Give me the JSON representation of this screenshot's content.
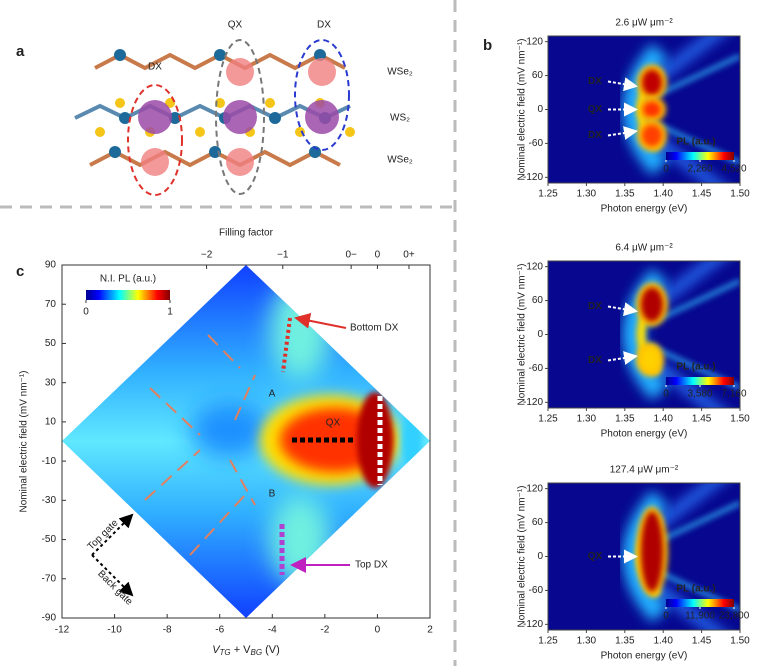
{
  "panel_a": {
    "label": "a",
    "excitons": [
      "DX",
      "QX",
      "DX"
    ],
    "layers": [
      "WSe₂",
      "WS₂",
      "WSe₂"
    ]
  },
  "panel_b": {
    "label": "b",
    "plots": [
      {
        "title": "2.6 μW μm⁻²",
        "xlabel": "Photon energy (eV)",
        "ylabel": "Nominal electric field (mV nm⁻¹)",
        "xlim": [
          1.25,
          1.5
        ],
        "xticks": [
          1.25,
          {
            "value": 1.3,
            "label": "1.30"
          },
          1.35,
          {
            "value": 1.4,
            "label": "1.40"
          },
          1.45,
          {
            "value": 1.5,
            "label": "1.50"
          }
        ],
        "ylim": [
          -130,
          130
        ],
        "yticks": [
          120,
          60,
          0,
          -60,
          -120
        ],
        "annotations": [
          "DX",
          "QX",
          "DX"
        ],
        "colorbar": {
          "label": "PL (a.u.)",
          "ticks": [
            0,
            {
              "value": 2260,
              "label": "2,260"
            },
            {
              "value": 4520,
              "label": "4,520"
            }
          ]
        }
      },
      {
        "title": "6.4 μW μm⁻²",
        "xlabel": "Photon energy (eV)",
        "ylabel": "Nominal electric field (mV nm⁻¹)",
        "xlim": [
          1.25,
          1.5
        ],
        "xticks": [
          1.25,
          {
            "value": 1.3,
            "label": "1.30"
          },
          1.35,
          {
            "value": 1.4,
            "label": "1.40"
          },
          1.45,
          {
            "value": 1.5,
            "label": "1.50"
          }
        ],
        "ylim": [
          -130,
          130
        ],
        "yticks": [
          120,
          60,
          0,
          -60,
          -120
        ],
        "annotations": [
          "DX",
          "DX"
        ],
        "colorbar": {
          "label": "PL (a.u.)",
          "ticks": [
            0,
            {
              "value": 3580,
              "label": "3,580"
            },
            {
              "value": 7160,
              "label": "7,160"
            }
          ]
        }
      },
      {
        "title": "127.4 μW μm⁻²",
        "xlabel": "Photon energy (eV)",
        "ylabel": "Nominal electric field (mV nm⁻¹)",
        "xlim": [
          1.25,
          1.5
        ],
        "xticks": [
          1.25,
          {
            "value": 1.3,
            "label": "1.30"
          },
          1.35,
          {
            "value": 1.4,
            "label": "1.40"
          },
          1.45,
          {
            "value": 1.5,
            "label": "1.50"
          }
        ],
        "ylim": [
          -130,
          130
        ],
        "yticks": [
          120,
          60,
          0,
          -60,
          -120
        ],
        "annotations": [
          "QX"
        ],
        "colorbar": {
          "label": "PL (a.u.)",
          "ticks": [
            0,
            {
              "value": 11900,
              "label": "11,900"
            },
            {
              "value": 23800,
              "label": "23,800"
            }
          ]
        }
      }
    ]
  },
  "panel_c": {
    "label": "c",
    "top_label": "Filling factor",
    "top_ticks": [
      {
        "value": -6.5,
        "label": "−2"
      },
      {
        "value": -3.6,
        "label": "−1"
      },
      {
        "value": -1,
        "label": "0−"
      },
      {
        "value": 0,
        "label": "0"
      },
      {
        "value": 1.2,
        "label": "0+"
      }
    ],
    "xlabel": [
      "V",
      "TG",
      " + V",
      "BG",
      " (V)"
    ],
    "ylabel": "Nominal electric field (mV nm⁻¹)",
    "xlim": [
      -12,
      2
    ],
    "xticks": [
      -12,
      -10,
      -8,
      -6,
      -4,
      -2,
      0,
      2
    ],
    "ylim": [
      -90,
      90
    ],
    "yticks": [
      90,
      70,
      50,
      30,
      10,
      -10,
      -30,
      -50,
      -70,
      -90
    ],
    "colorbar": {
      "label": "N.I. PL (a.u.)",
      "ticks": [
        0,
        1
      ]
    },
    "annotations": {
      "bottom_dx": "Bottom DX",
      "top_dx": "Top DX",
      "a": "A",
      "b": "B",
      "qx": "QX",
      "top_gate": "Top gate",
      "back_gate": "Back gate"
    }
  }
}
